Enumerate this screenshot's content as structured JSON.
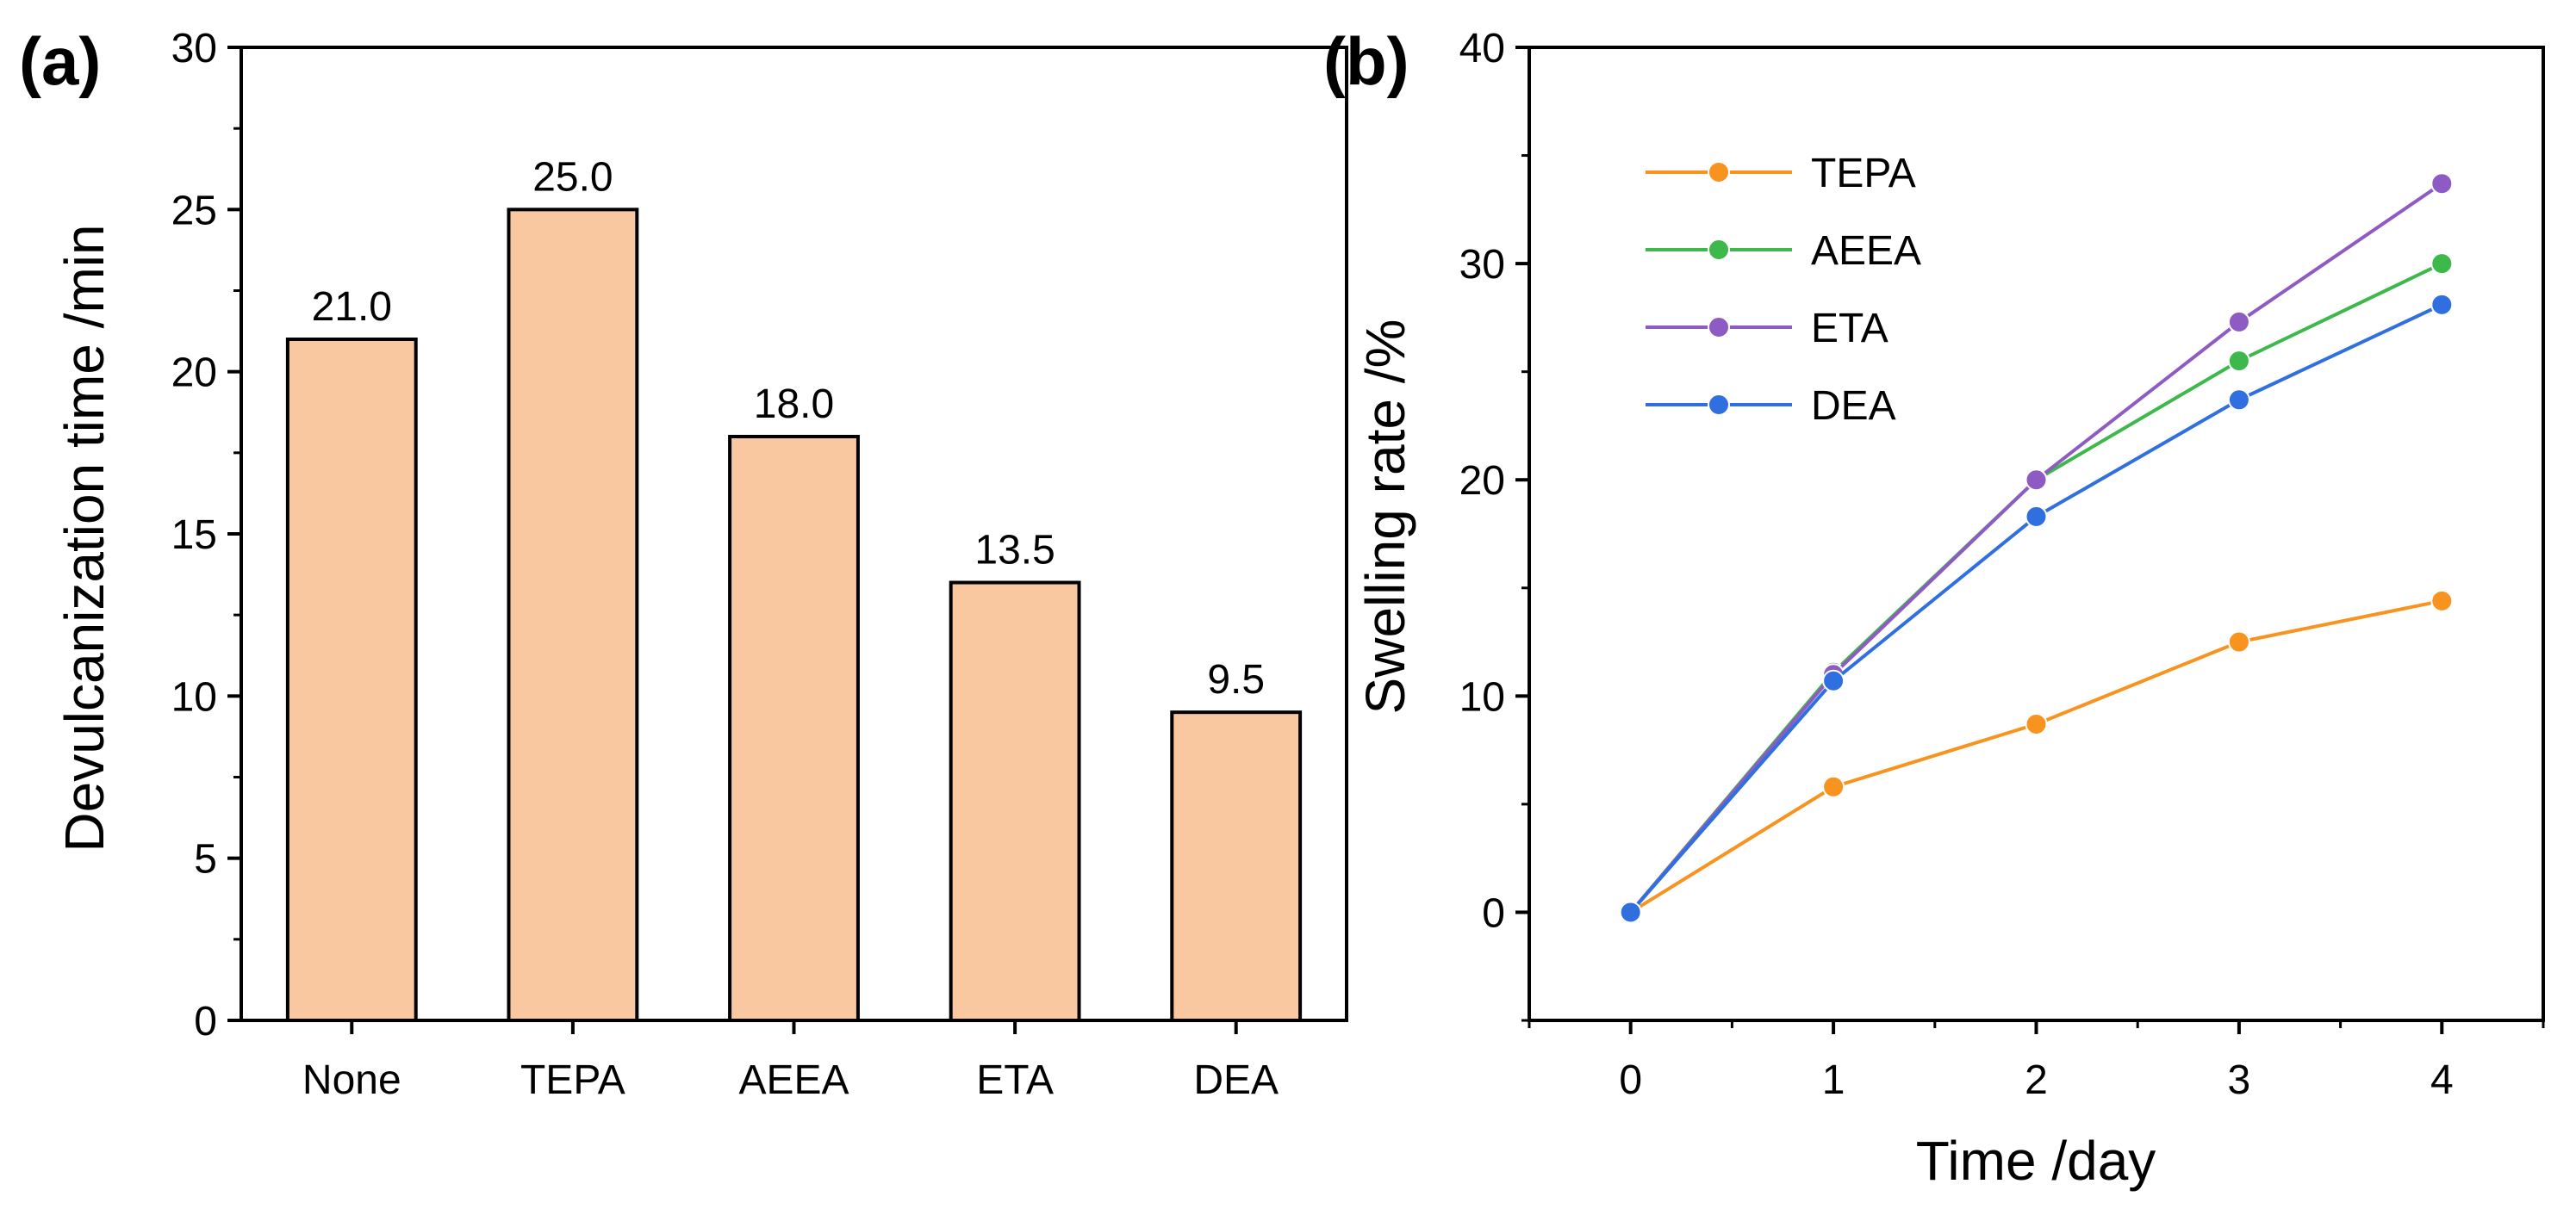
{
  "chart_data": [
    {
      "type": "bar",
      "panel_label": "(a)",
      "title": "",
      "xlabel": "",
      "ylabel": "Devulcanization time /min",
      "categories": [
        "None",
        "TEPA",
        "AEEA",
        "ETA",
        "DEA"
      ],
      "values": [
        21.0,
        25.0,
        18.0,
        13.5,
        9.5
      ],
      "data_labels": [
        "21.0",
        "25.0",
        "18.0",
        "13.5",
        "9.5"
      ],
      "ylim": [
        0,
        30
      ],
      "yticks": [
        0,
        5,
        10,
        15,
        20,
        25,
        30
      ],
      "bar_color": "#FAC8A0",
      "grid": false
    },
    {
      "type": "line",
      "panel_label": "(b)",
      "title": "",
      "xlabel": "Time /day",
      "ylabel": "Swelling rate /%",
      "x": [
        0,
        1,
        2,
        3,
        4
      ],
      "xlim": [
        -0.5,
        4.5
      ],
      "ylim": [
        -5,
        40
      ],
      "xticks": [
        0,
        1,
        2,
        3,
        4
      ],
      "yticks": [
        0,
        10,
        20,
        30,
        40
      ],
      "legend_position": "top-left",
      "grid": false,
      "series": [
        {
          "name": "TEPA",
          "color": "#F7931E",
          "values": [
            0,
            5.8,
            8.7,
            12.5,
            14.4
          ]
        },
        {
          "name": "AEEA",
          "color": "#3DB84A",
          "values": [
            0,
            11.1,
            20.0,
            25.5,
            30.0
          ]
        },
        {
          "name": "ETA",
          "color": "#8E5BC5",
          "values": [
            0,
            11.0,
            20.0,
            27.3,
            33.7
          ]
        },
        {
          "name": "DEA",
          "color": "#2F6FE0",
          "values": [
            0,
            10.7,
            18.3,
            23.7,
            28.1
          ]
        }
      ]
    }
  ]
}
